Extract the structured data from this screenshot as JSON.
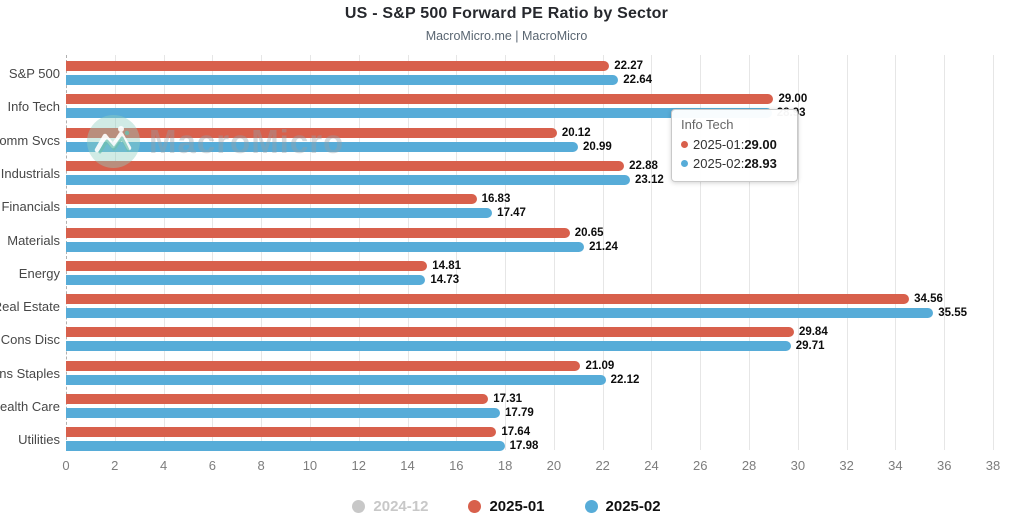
{
  "title": "US - S&P 500 Forward PE Ratio by Sector",
  "subtitle": "MacroMicro.me | MacroMicro",
  "watermark": {
    "text": "MacroMicro"
  },
  "chart_data": {
    "type": "bar",
    "orientation": "horizontal",
    "title": "US - S&P 500 Forward PE Ratio by Sector",
    "categories": [
      "S&P 500",
      "Info Tech",
      "Comm Svcs",
      "Industrials",
      "Financials",
      "Materials",
      "Energy",
      "Real Estate",
      "Cons Disc",
      "Cons Staples",
      "Health Care",
      "Utilities"
    ],
    "series": [
      {
        "name": "2024-12",
        "color": "#c8c8c8",
        "disabled": true,
        "values": []
      },
      {
        "name": "2025-01",
        "color": "#d8604c",
        "disabled": false,
        "values": [
          22.27,
          29.0,
          20.12,
          22.88,
          16.83,
          20.65,
          14.81,
          34.56,
          29.84,
          21.09,
          17.31,
          17.64
        ]
      },
      {
        "name": "2025-02",
        "color": "#57acd8",
        "disabled": false,
        "values": [
          22.64,
          28.93,
          20.99,
          23.12,
          17.47,
          21.24,
          14.73,
          35.55,
          29.71,
          22.12,
          17.79,
          17.98
        ]
      }
    ],
    "xlim": [
      0,
      38
    ],
    "x_ticks": [
      0,
      2,
      4,
      6,
      8,
      10,
      12,
      14,
      16,
      18,
      20,
      22,
      24,
      26,
      28,
      30,
      32,
      34,
      36,
      38
    ],
    "grid": true,
    "value_labels": true,
    "value_label_decimals": 2,
    "legend_position": "bottom"
  },
  "tooltip": {
    "title": "Info Tech",
    "rows": [
      {
        "label": "2025-01: ",
        "value": "29.00",
        "color": "#d8604c"
      },
      {
        "label": "2025-02: ",
        "value": "28.93",
        "color": "#57acd8"
      }
    ]
  },
  "legend": {
    "items": [
      {
        "label": "2024-12",
        "color": "#c8c8c8",
        "disabled": true
      },
      {
        "label": "2025-01",
        "color": "#d8604c",
        "disabled": false
      },
      {
        "label": "2025-02",
        "color": "#57acd8",
        "disabled": false
      }
    ]
  },
  "colors": {
    "grid": "#e6e6e6",
    "axis_dashed": "#b0b0b0",
    "background": "#ffffff"
  }
}
